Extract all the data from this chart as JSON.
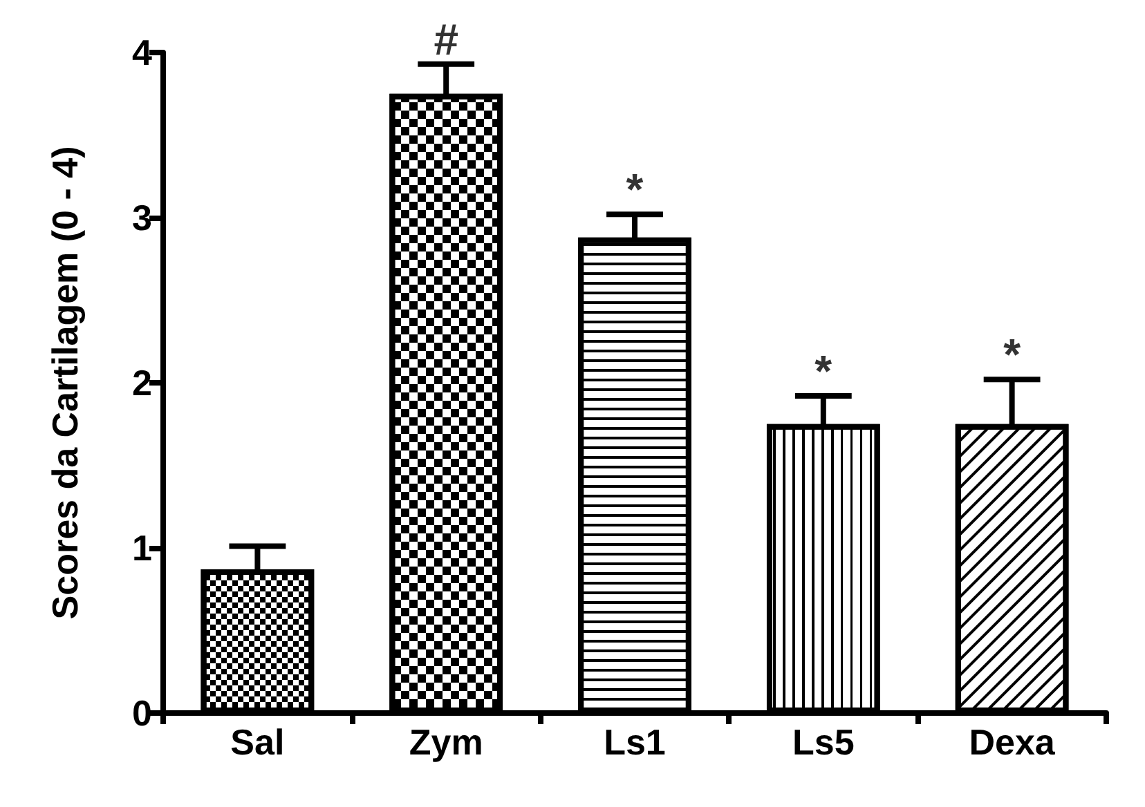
{
  "chart_data": {
    "type": "bar",
    "ylabel": "Scores da Cartilagem (0 - 4)",
    "categories": [
      "Sal",
      "Zym",
      "Ls1",
      "Ls5",
      "Dexa"
    ],
    "values": [
      0.87,
      3.75,
      2.88,
      1.75,
      1.75
    ],
    "errors": [
      0.14,
      0.18,
      0.14,
      0.17,
      0.27
    ],
    "color": "#000000",
    "ylim": [
      0,
      4
    ],
    "yticks": [
      0,
      1,
      2,
      3,
      4
    ],
    "grid": false,
    "annotations": [
      {
        "text": "#",
        "x": "Zym",
        "y": 3.93
      },
      {
        "text": "*",
        "x": "Ls1",
        "y": 3.02
      },
      {
        "text": "*",
        "x": "Ls5",
        "y": 1.92
      },
      {
        "text": "*",
        "x": "Dexa",
        "y": 2.02
      }
    ]
  }
}
